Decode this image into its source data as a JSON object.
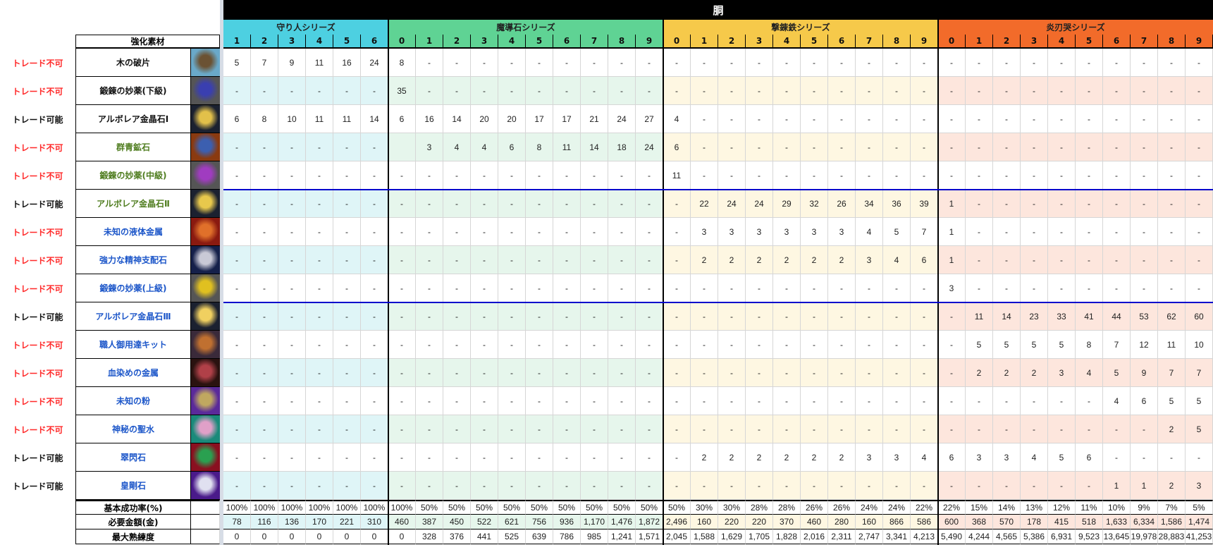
{
  "title": "胴",
  "material_header": "強化素材",
  "colors": {
    "trade_ng": "#ff2a2a",
    "trade_ok": "#111111",
    "name_black": "#111111",
    "name_green": "#4f7d1f",
    "name_blue": "#1c56c9"
  },
  "series": [
    {
      "name": "守り人シリーズ",
      "color": "#4dd0e1",
      "tint": "#dff5f7",
      "levels": [
        "1",
        "2",
        "3",
        "4",
        "5",
        "6"
      ]
    },
    {
      "name": "魔導石シリーズ",
      "color": "#5fd394",
      "tint": "#e6f6ec",
      "levels": [
        "0",
        "1",
        "2",
        "3",
        "4",
        "5",
        "6",
        "7",
        "8",
        "9"
      ]
    },
    {
      "name": "撃錬鉄シリーズ",
      "color": "#f6c94a",
      "tint": "#fef7e2",
      "levels": [
        "0",
        "1",
        "2",
        "3",
        "4",
        "5",
        "6",
        "7",
        "8",
        "9"
      ]
    },
    {
      "name": "炎刃哭シリーズ",
      "color": "#f26b2a",
      "tint": "#fde6dd",
      "levels": [
        "0",
        "1",
        "2",
        "3",
        "4",
        "5",
        "6",
        "7",
        "8",
        "9"
      ]
    }
  ],
  "materials": [
    {
      "trade": "トレード不可",
      "name": "木の破片",
      "name_color": "name_black",
      "icon": "wood-fragment-icon",
      "icon_colors": [
        "#6aa9c9",
        "#6b5233"
      ],
      "values": [
        "5",
        "7",
        "9",
        "11",
        "16",
        "24",
        "8",
        "-",
        "-",
        "-",
        "-",
        "-",
        "-",
        "-",
        "-",
        "-",
        "-",
        "-",
        "-",
        "-",
        "-",
        "-",
        "-",
        "-",
        "-",
        "-",
        "-",
        "-",
        "-",
        "-",
        "-",
        "-",
        "-",
        "-",
        "-",
        "-"
      ]
    },
    {
      "trade": "トレード不可",
      "name": "鍛錬の妙薬(下級)",
      "name_color": "name_black",
      "icon": "potion-low-icon",
      "icon_colors": [
        "#555",
        "#3a3fb0"
      ],
      "values": [
        "-",
        "-",
        "-",
        "-",
        "-",
        "-",
        "35",
        "-",
        "-",
        "-",
        "-",
        "-",
        "-",
        "-",
        "-",
        "-",
        "-",
        "-",
        "-",
        "-",
        "-",
        "-",
        "-",
        "-",
        "-",
        "-",
        "-",
        "-",
        "-",
        "-",
        "-",
        "-",
        "-",
        "-",
        "-",
        "-"
      ]
    },
    {
      "trade": "トレード可能",
      "name": "アルボレア金晶石Ⅰ",
      "name_color": "name_black",
      "icon": "gold-crystal-1-icon",
      "icon_colors": [
        "#1b2130",
        "#e2c04a"
      ],
      "values": [
        "6",
        "8",
        "10",
        "11",
        "11",
        "14",
        "6",
        "16",
        "14",
        "20",
        "20",
        "17",
        "17",
        "21",
        "24",
        "27",
        "4",
        "-",
        "-",
        "-",
        "-",
        "-",
        "-",
        "-",
        "-",
        "-",
        "-",
        "-",
        "-",
        "-",
        "-",
        "-",
        "-",
        "-",
        "-",
        "-"
      ]
    },
    {
      "trade": "トレード不可",
      "name": "群青鉱石",
      "name_color": "name_green",
      "icon": "ultramarine-ore-icon",
      "icon_colors": [
        "#8a3a10",
        "#3c5fb0"
      ],
      "values": [
        "-",
        "-",
        "-",
        "-",
        "-",
        "-",
        "",
        "3",
        "4",
        "4",
        "6",
        "8",
        "11",
        "14",
        "18",
        "24",
        "6",
        "-",
        "-",
        "-",
        "-",
        "-",
        "-",
        "-",
        "-",
        "-",
        "-",
        "-",
        "-",
        "-",
        "-",
        "-",
        "-",
        "-",
        "-",
        "-"
      ]
    },
    {
      "trade": "トレード不可",
      "name": "鍛錬の妙薬(中級)",
      "name_color": "name_green",
      "icon": "potion-mid-icon",
      "icon_colors": [
        "#555",
        "#a03cc0"
      ],
      "values": [
        "-",
        "-",
        "-",
        "-",
        "-",
        "-",
        "-",
        "-",
        "-",
        "-",
        "-",
        "-",
        "-",
        "-",
        "-",
        "-",
        "11",
        "-",
        "-",
        "-",
        "-",
        "-",
        "-",
        "-",
        "-",
        "-",
        "-",
        "-",
        "-",
        "-",
        "-",
        "-",
        "-",
        "-",
        "-",
        "-"
      ]
    },
    {
      "trade": "トレード可能",
      "name": "アルボレア金晶石Ⅱ",
      "name_color": "name_green",
      "icon": "gold-crystal-2-icon",
      "icon_colors": [
        "#1b2130",
        "#e8c84c"
      ],
      "values": [
        "-",
        "-",
        "-",
        "-",
        "-",
        "-",
        "-",
        "-",
        "-",
        "-",
        "-",
        "-",
        "-",
        "-",
        "-",
        "-",
        "-",
        "22",
        "24",
        "24",
        "29",
        "32",
        "26",
        "34",
        "36",
        "39",
        "1",
        "-",
        "-",
        "-",
        "-",
        "-",
        "-",
        "-",
        "-",
        "-"
      ]
    },
    {
      "trade": "トレード不可",
      "name": "未知の液体金属",
      "name_color": "name_blue",
      "icon": "liquid-metal-icon",
      "icon_colors": [
        "#8a1a10",
        "#e0702a"
      ],
      "values": [
        "-",
        "-",
        "-",
        "-",
        "-",
        "-",
        "-",
        "-",
        "-",
        "-",
        "-",
        "-",
        "-",
        "-",
        "-",
        "-",
        "-",
        "3",
        "3",
        "3",
        "3",
        "3",
        "3",
        "4",
        "5",
        "7",
        "1",
        "-",
        "-",
        "-",
        "-",
        "-",
        "-",
        "-",
        "-",
        "-"
      ]
    },
    {
      "trade": "トレード不可",
      "name": "強力な精神支配石",
      "name_color": "name_blue",
      "icon": "mind-control-stone-icon",
      "icon_colors": [
        "#15204a",
        "#c9c9d6"
      ],
      "values": [
        "-",
        "-",
        "-",
        "-",
        "-",
        "-",
        "-",
        "-",
        "-",
        "-",
        "-",
        "-",
        "-",
        "-",
        "-",
        "-",
        "-",
        "2",
        "2",
        "2",
        "2",
        "2",
        "2",
        "3",
        "4",
        "6",
        "1",
        "-",
        "-",
        "-",
        "-",
        "-",
        "-",
        "-",
        "-",
        "-"
      ]
    },
    {
      "trade": "トレード不可",
      "name": "鍛錬の妙薬(上級)",
      "name_color": "name_blue",
      "icon": "potion-high-icon",
      "icon_colors": [
        "#555",
        "#e0c020"
      ],
      "values": [
        "-",
        "-",
        "-",
        "-",
        "-",
        "-",
        "-",
        "-",
        "-",
        "-",
        "-",
        "-",
        "-",
        "-",
        "-",
        "-",
        "-",
        "-",
        "-",
        "-",
        "-",
        "-",
        "-",
        "-",
        "-",
        "-",
        "3",
        "-",
        "-",
        "-",
        "-",
        "-",
        "-",
        "-",
        "-",
        "-"
      ]
    },
    {
      "trade": "トレード可能",
      "name": "アルボレア金晶石Ⅲ",
      "name_color": "name_blue",
      "icon": "gold-crystal-3-icon",
      "icon_colors": [
        "#1b2130",
        "#f0d060"
      ],
      "values": [
        "-",
        "-",
        "-",
        "-",
        "-",
        "-",
        "-",
        "-",
        "-",
        "-",
        "-",
        "-",
        "-",
        "-",
        "-",
        "-",
        "-",
        "-",
        "-",
        "-",
        "-",
        "-",
        "-",
        "-",
        "-",
        "-",
        "-",
        "11",
        "14",
        "23",
        "33",
        "41",
        "44",
        "53",
        "62",
        "60"
      ]
    },
    {
      "trade": "トレード不可",
      "name": "職人御用達キット",
      "name_color": "name_blue",
      "icon": "artisan-kit-icon",
      "icon_colors": [
        "#3a2a3a",
        "#c07030"
      ],
      "values": [
        "-",
        "-",
        "-",
        "-",
        "-",
        "-",
        "-",
        "-",
        "-",
        "-",
        "-",
        "-",
        "-",
        "-",
        "-",
        "-",
        "-",
        "-",
        "-",
        "-",
        "-",
        "-",
        "-",
        "-",
        "-",
        "-",
        "-",
        "5",
        "5",
        "5",
        "5",
        "8",
        "7",
        "12",
        "11",
        "10"
      ]
    },
    {
      "trade": "トレード不可",
      "name": "血染めの金属",
      "name_color": "name_blue",
      "icon": "bloodstained-metal-icon",
      "icon_colors": [
        "#2a1210",
        "#b04048"
      ],
      "values": [
        "-",
        "-",
        "-",
        "-",
        "-",
        "-",
        "-",
        "-",
        "-",
        "-",
        "-",
        "-",
        "-",
        "-",
        "-",
        "-",
        "-",
        "-",
        "-",
        "-",
        "-",
        "-",
        "-",
        "-",
        "-",
        "-",
        "-",
        "2",
        "2",
        "2",
        "3",
        "4",
        "5",
        "9",
        "7",
        "7"
      ]
    },
    {
      "trade": "トレード不可",
      "name": "未知の粉",
      "name_color": "name_blue",
      "icon": "unknown-powder-icon",
      "icon_colors": [
        "#5a2a9a",
        "#c0a860"
      ],
      "values": [
        "-",
        "-",
        "-",
        "-",
        "-",
        "-",
        "-",
        "-",
        "-",
        "-",
        "-",
        "-",
        "-",
        "-",
        "-",
        "-",
        "-",
        "-",
        "-",
        "-",
        "-",
        "-",
        "-",
        "-",
        "-",
        "-",
        "-",
        "-",
        "-",
        "-",
        "-",
        "-",
        "4",
        "6",
        "5",
        "5"
      ]
    },
    {
      "trade": "トレード不可",
      "name": "神秘の聖水",
      "name_color": "name_blue",
      "icon": "holy-water-icon",
      "icon_colors": [
        "#1a8a7a",
        "#e0a0c8"
      ],
      "values": [
        "-",
        "-",
        "-",
        "-",
        "-",
        "-",
        "-",
        "-",
        "-",
        "-",
        "-",
        "-",
        "-",
        "-",
        "-",
        "-",
        "-",
        "-",
        "-",
        "-",
        "-",
        "-",
        "-",
        "-",
        "-",
        "-",
        "-",
        "-",
        "-",
        "-",
        "-",
        "-",
        "-",
        "-",
        "2",
        "5"
      ]
    },
    {
      "trade": "トレード可能",
      "name": "翠閃石",
      "name_color": "name_blue",
      "icon": "emerald-stone-icon",
      "icon_colors": [
        "#8a1020",
        "#2aa050"
      ],
      "values": [
        "-",
        "-",
        "-",
        "-",
        "-",
        "-",
        "-",
        "-",
        "-",
        "-",
        "-",
        "-",
        "-",
        "-",
        "-",
        "-",
        "-",
        "2",
        "2",
        "2",
        "2",
        "2",
        "2",
        "3",
        "3",
        "4",
        "6",
        "3",
        "3",
        "4",
        "5",
        "6",
        "-",
        "-",
        "-",
        "-"
      ]
    },
    {
      "trade": "トレード可能",
      "name": "皇剛石",
      "name_color": "name_blue",
      "icon": "diamond-stone-icon",
      "icon_colors": [
        "#4a1a8a",
        "#e0e0f0"
      ],
      "values": [
        "-",
        "-",
        "-",
        "-",
        "-",
        "-",
        "-",
        "-",
        "-",
        "-",
        "-",
        "-",
        "-",
        "-",
        "-",
        "-",
        "-",
        "-",
        "-",
        "-",
        "-",
        "-",
        "-",
        "-",
        "-",
        "-",
        "-",
        "-",
        "-",
        "-",
        "-",
        "-",
        "1",
        "1",
        "2",
        "3"
      ]
    }
  ],
  "summary": [
    {
      "label": "基本成功率(%)",
      "tinted": false,
      "values": [
        "100%",
        "100%",
        "100%",
        "100%",
        "100%",
        "100%",
        "100%",
        "50%",
        "50%",
        "50%",
        "50%",
        "50%",
        "50%",
        "50%",
        "50%",
        "50%",
        "50%",
        "30%",
        "30%",
        "28%",
        "28%",
        "26%",
        "26%",
        "24%",
        "24%",
        "22%",
        "22%",
        "15%",
        "14%",
        "13%",
        "12%",
        "11%",
        "10%",
        "9%",
        "7%",
        "5%"
      ]
    },
    {
      "label": "必要金額(金)",
      "tinted": true,
      "values": [
        "78",
        "116",
        "136",
        "170",
        "221",
        "310",
        "460",
        "387",
        "450",
        "522",
        "621",
        "756",
        "936",
        "1,170",
        "1,476",
        "1,872",
        "2,496",
        "160",
        "220",
        "220",
        "370",
        "460",
        "280",
        "160",
        "866",
        "586",
        "600",
        "368",
        "570",
        "178",
        "415",
        "518",
        "1,633",
        "6,334",
        "1,586",
        "1,474"
      ]
    },
    {
      "label": "最大熟練度",
      "tinted": false,
      "values": [
        "0",
        "0",
        "0",
        "0",
        "0",
        "0",
        "0",
        "328",
        "376",
        "441",
        "525",
        "639",
        "786",
        "985",
        "1,241",
        "1,571",
        "2,045",
        "1,588",
        "1,629",
        "1,705",
        "1,828",
        "2,016",
        "2,311",
        "2,747",
        "3,341",
        "4,213",
        "5,490",
        "4,244",
        "4,565",
        "5,386",
        "6,931",
        "9,523",
        "13,645",
        "19,978",
        "28,883",
        "41,253"
      ]
    }
  ]
}
